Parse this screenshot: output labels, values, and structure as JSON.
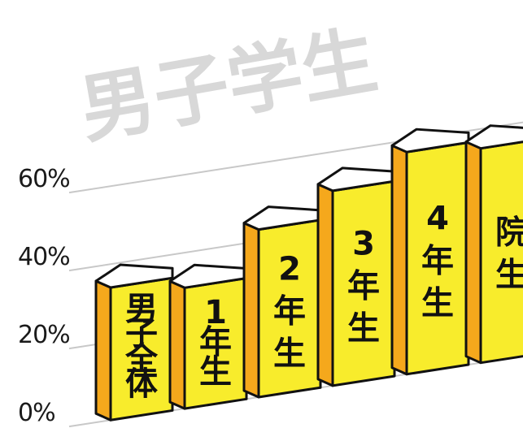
{
  "chart_data": {
    "type": "bar",
    "title": "男子学生",
    "categories": [
      "男子全体",
      "1年生",
      "2年生",
      "3年生",
      "4年生",
      "院生"
    ],
    "values": [
      34,
      31,
      43,
      50,
      57,
      55
    ],
    "y_ticks": [
      "0%",
      "20%",
      "40%",
      "60%"
    ],
    "ylim": [
      0,
      60
    ],
    "grid": true,
    "colors": {
      "front": "#f8ec2c",
      "side": "#f5a81c",
      "top": "#ffffff",
      "outline": "#111111",
      "grid": "#c8c8c8",
      "watermark": "#d8d8d8"
    }
  }
}
